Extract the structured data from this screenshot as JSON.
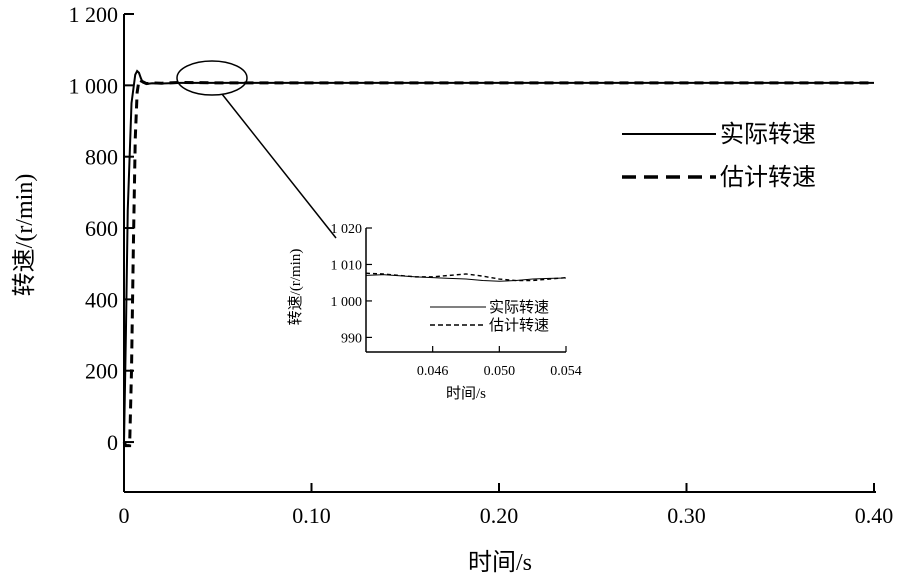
{
  "chart_data": [
    {
      "type": "line",
      "xlabel": "时间/s",
      "ylabel": "转速/(r/min)",
      "xlim": [
        0,
        0.4
      ],
      "ylim": [
        -140,
        1200
      ],
      "x_ticks": [
        0,
        0.1,
        0.2,
        0.3,
        0.4
      ],
      "x_tick_labels": [
        "0",
        "0.10",
        "0.20",
        "0.30",
        "0.40"
      ],
      "y_ticks": [
        0,
        200,
        400,
        600,
        800,
        1000,
        1200
      ],
      "y_tick_labels": [
        "0",
        "200",
        "400",
        "600",
        "800",
        "1 000",
        "1 200"
      ],
      "legend_position": "right",
      "series": [
        {
          "name": "实际转速",
          "style": "solid",
          "x": [
            0,
            0.001,
            0.002,
            0.004,
            0.006,
            0.007,
            0.008,
            0.009,
            0.01,
            0.012,
            0.015,
            0.02,
            0.03,
            0.05,
            0.1,
            0.2,
            0.3,
            0.4
          ],
          "y": [
            0,
            300,
            650,
            950,
            1030,
            1040,
            1035,
            1020,
            1008,
            1004,
            1006,
            1005,
            1007,
            1007,
            1007,
            1007,
            1007,
            1007
          ]
        },
        {
          "name": "估计转速",
          "style": "dashed",
          "x": [
            0,
            0.001,
            0.002,
            0.003,
            0.004,
            0.005,
            0.006,
            0.007,
            0.008,
            0.01,
            0.012,
            0.015,
            0.02,
            0.03,
            0.05,
            0.1,
            0.2,
            0.3,
            0.4
          ],
          "y": [
            0,
            -10,
            -10,
            -10,
            200,
            550,
            850,
            980,
            1015,
            1010,
            1005,
            1007,
            1006,
            1008,
            1007,
            1007,
            1007,
            1007,
            1007
          ]
        }
      ]
    },
    {
      "type": "line",
      "xlabel": "时间/s",
      "ylabel": "转速/(r/min)",
      "xlim": [
        0.042,
        0.054
      ],
      "ylim": [
        986,
        1020
      ],
      "x_ticks": [
        0.046,
        0.05,
        0.054
      ],
      "x_tick_labels": [
        "0.046",
        "0.050",
        "0.054"
      ],
      "y_ticks": [
        990,
        1000,
        1010,
        1020
      ],
      "y_tick_labels": [
        "990",
        "1 000",
        "1 010",
        "1 020"
      ],
      "legend_position": "bottom-right",
      "series": [
        {
          "name": "实际转速",
          "style": "solid",
          "x": [
            0.042,
            0.043,
            0.044,
            0.045,
            0.046,
            0.047,
            0.048,
            0.049,
            0.05,
            0.051,
            0.052,
            0.053,
            0.054
          ],
          "y": [
            1007.0,
            1007.2,
            1006.9,
            1006.6,
            1006.4,
            1006.2,
            1006.0,
            1005.6,
            1005.4,
            1005.6,
            1006.0,
            1006.2,
            1006.3
          ]
        },
        {
          "name": "估计转速",
          "style": "dashed",
          "x": [
            0.042,
            0.043,
            0.044,
            0.045,
            0.046,
            0.047,
            0.048,
            0.049,
            0.05,
            0.051,
            0.052,
            0.053,
            0.054
          ],
          "y": [
            1007.6,
            1007.4,
            1007.0,
            1006.6,
            1006.6,
            1007.0,
            1007.4,
            1006.8,
            1006.0,
            1005.6,
            1005.6,
            1006.0,
            1006.4
          ]
        }
      ]
    }
  ]
}
